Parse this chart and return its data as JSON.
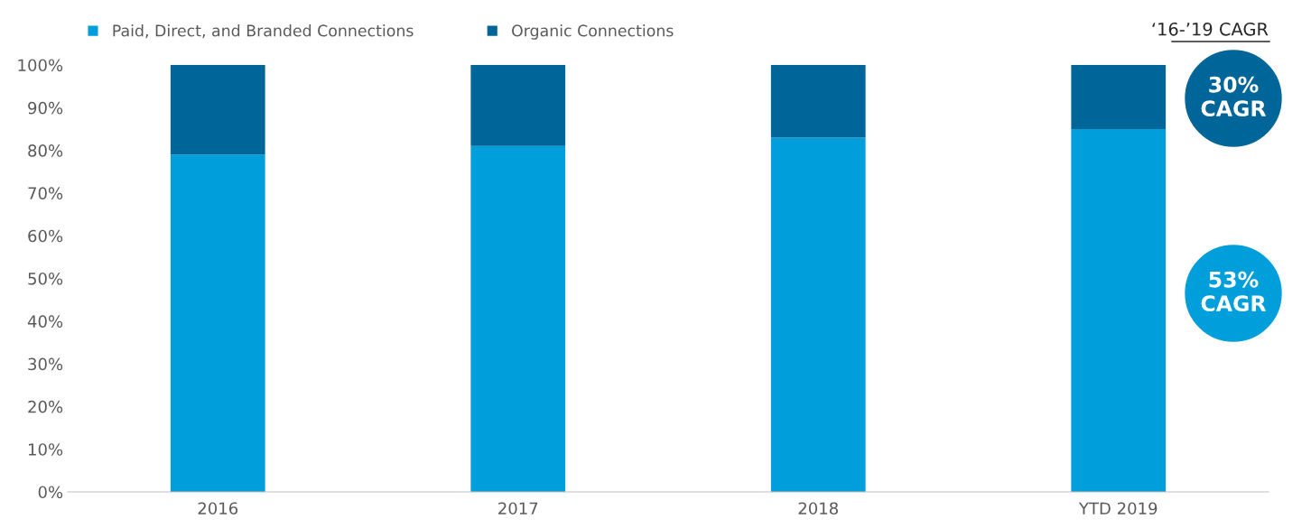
{
  "chart_data": {
    "type": "bar",
    "stacked": true,
    "categories": [
      "2016",
      "2017",
      "2018",
      "YTD 2019"
    ],
    "series": [
      {
        "name": "Paid, Direct, and Branded Connections",
        "color": "#009fdb",
        "values": [
          79,
          81,
          83,
          85
        ]
      },
      {
        "name": "Organic Connections",
        "color": "#006699",
        "values": [
          21,
          19,
          17,
          15
        ]
      }
    ],
    "ylim": [
      0,
      100
    ],
    "yticks": [
      {
        "value": 0,
        "label": "0%"
      },
      {
        "value": 10,
        "label": "10%"
      },
      {
        "value": 20,
        "label": "20%"
      },
      {
        "value": 30,
        "label": "30%"
      },
      {
        "value": 40,
        "label": "40%"
      },
      {
        "value": 50,
        "label": "50%"
      },
      {
        "value": 60,
        "label": "60%"
      },
      {
        "value": 70,
        "label": "70%"
      },
      {
        "value": 80,
        "label": "80%"
      },
      {
        "value": 90,
        "label": "90%"
      },
      {
        "value": 100,
        "label": "100%"
      }
    ],
    "grid": false,
    "legend": "top left",
    "annotations": [
      "‘16-’19 CAGR",
      "30%\nCAGR",
      "53%\nCAGR"
    ]
  }
}
